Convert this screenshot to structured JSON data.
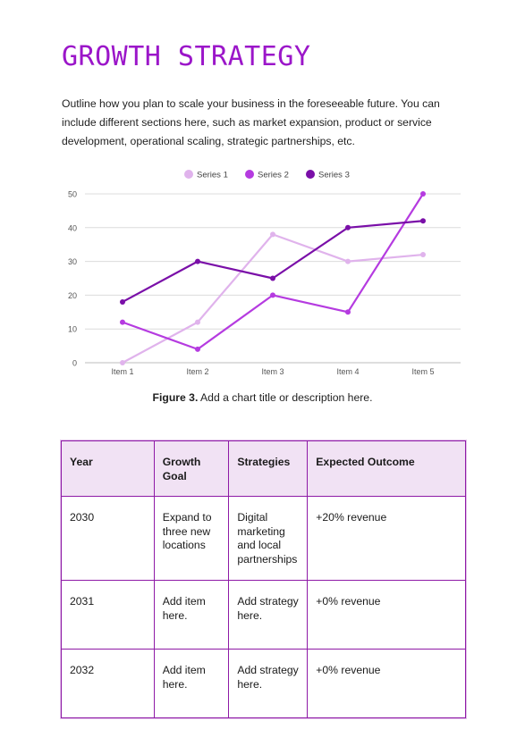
{
  "page": {
    "title": "GROWTH STRATEGY",
    "intro": "Outline how you plan to scale your business in the foreseeable future. You can include different sections here, such as market expansion, product or service development, operational scaling, strategic partnerships, etc.",
    "caption_label": "Figure 3.",
    "caption_text": " Add a chart title or description here."
  },
  "chart_data": {
    "type": "line",
    "categories": [
      "Item 1",
      "Item 2",
      "Item 3",
      "Item 4",
      "Item 5"
    ],
    "series": [
      {
        "name": "Series 1",
        "values": [
          0,
          12,
          38,
          30,
          32
        ],
        "color": "#e0b3ec"
      },
      {
        "name": "Series 2",
        "values": [
          12,
          4,
          20,
          15,
          50
        ],
        "color": "#b53be0"
      },
      {
        "name": "Series 3",
        "values": [
          18,
          30,
          25,
          40,
          42
        ],
        "color": "#7a0fa8"
      }
    ],
    "ylim": [
      0,
      50
    ],
    "yticks": [
      0,
      10,
      20,
      30,
      40,
      50
    ],
    "grid": true,
    "legend": "top-center"
  },
  "table": {
    "headers": [
      "Year",
      "Growth Goal",
      "Strategies",
      "Expected Outcome"
    ],
    "rows": [
      [
        "2030",
        "Expand to three new locations",
        "Digital marketing and local partnerships",
        "+20% revenue"
      ],
      [
        "2031",
        "Add item here.",
        "Add strategy here.",
        "+0% revenue"
      ],
      [
        "2032",
        "Add item here.",
        "Add strategy here.",
        "+0% revenue"
      ]
    ]
  }
}
